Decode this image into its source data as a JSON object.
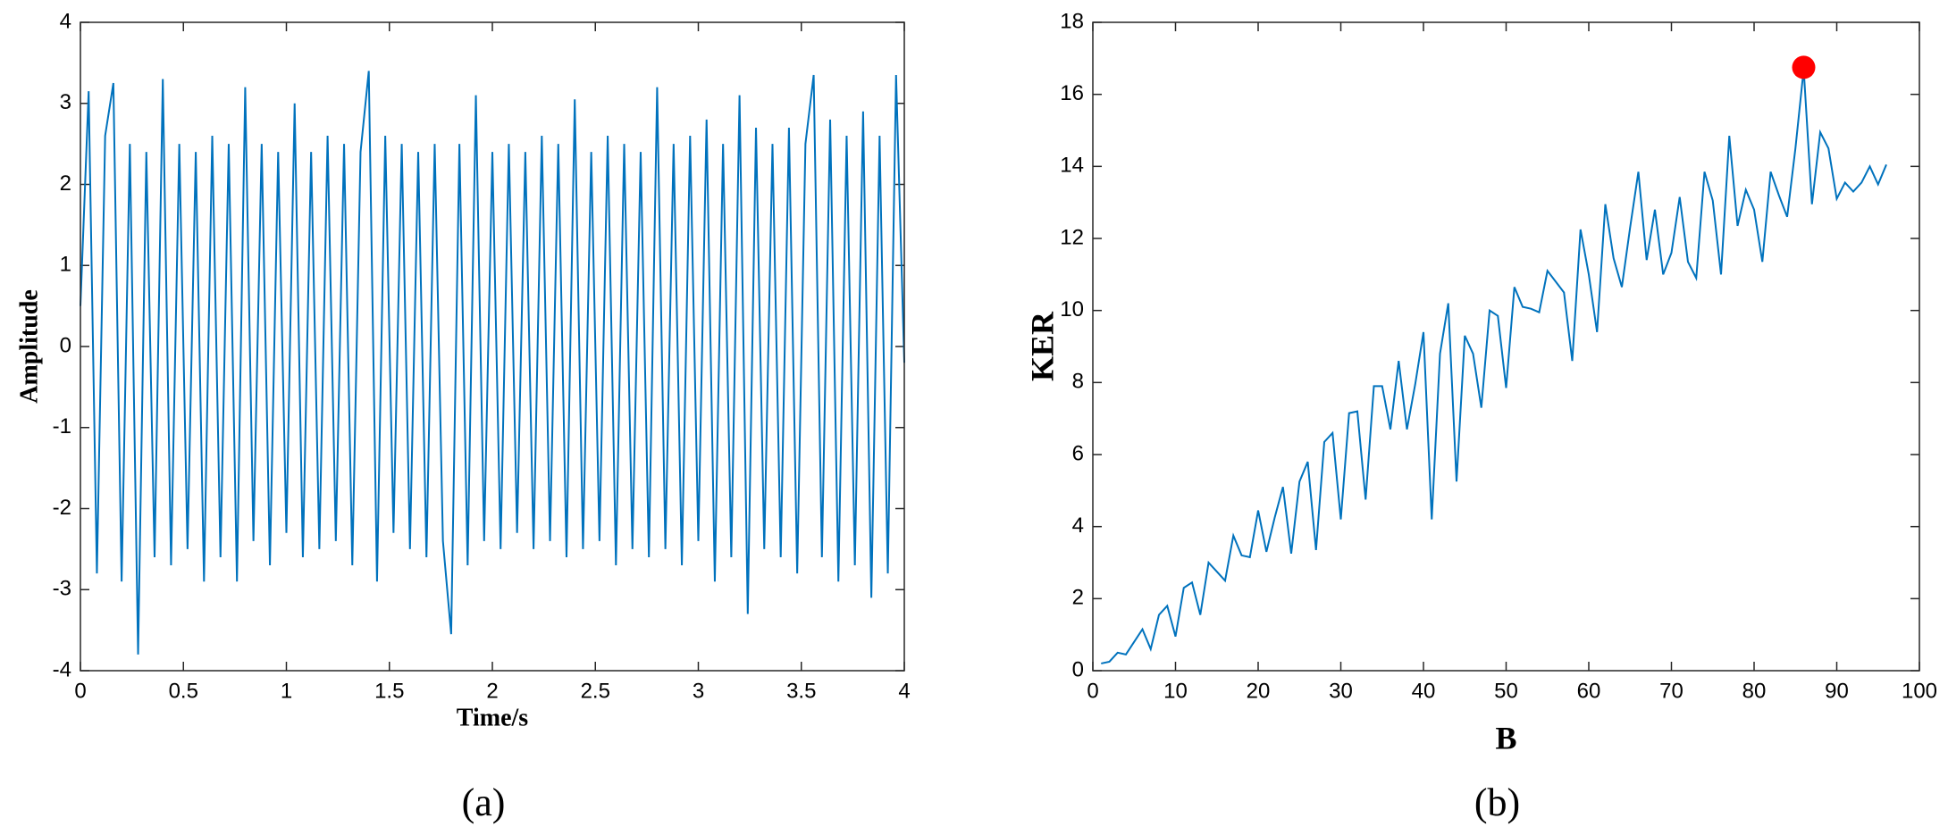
{
  "chart_data": [
    {
      "type": "line",
      "caption": "(a)",
      "xlabel": "Time/s",
      "ylabel": "Amplitude",
      "color": "#0072bd",
      "xlim": [
        0,
        4
      ],
      "xticks": [
        0,
        0.5,
        1,
        1.5,
        2,
        2.5,
        3,
        3.5,
        4
      ],
      "ylim": [
        -4,
        4
      ],
      "yticks": [
        -4,
        -3,
        -2,
        -1,
        0,
        1,
        2,
        3,
        4
      ],
      "x": [
        0,
        0.04,
        0.08,
        0.12,
        0.16,
        0.2,
        0.24,
        0.28,
        0.32,
        0.36,
        0.4,
        0.44,
        0.48,
        0.52,
        0.56,
        0.6,
        0.64,
        0.68,
        0.72,
        0.76,
        0.8,
        0.84,
        0.88,
        0.92,
        0.96,
        1,
        1.04,
        1.08,
        1.12,
        1.16,
        1.2,
        1.24,
        1.28,
        1.32,
        1.36,
        1.4,
        1.44,
        1.48,
        1.52,
        1.56,
        1.6,
        1.64,
        1.68,
        1.72,
        1.76,
        1.8,
        1.84,
        1.88,
        1.92,
        1.96,
        2,
        2.04,
        2.08,
        2.12,
        2.16,
        2.2,
        2.24,
        2.28,
        2.32,
        2.36,
        2.4,
        2.44,
        2.48,
        2.52,
        2.56,
        2.6,
        2.64,
        2.68,
        2.72,
        2.76,
        2.8,
        2.84,
        2.88,
        2.92,
        2.96,
        3,
        3.04,
        3.08,
        3.12,
        3.16,
        3.2,
        3.24,
        3.28,
        3.32,
        3.36,
        3.4,
        3.44,
        3.48,
        3.52,
        3.56,
        3.6,
        3.64,
        3.68,
        3.72,
        3.76,
        3.8,
        3.84,
        3.88,
        3.92,
        3.96,
        4
      ],
      "values": [
        0.5,
        3.15,
        -2.8,
        2.6,
        3.25,
        -2.9,
        2.5,
        -3.8,
        2.4,
        -2.6,
        3.3,
        -2.7,
        2.5,
        -2.5,
        2.4,
        -2.9,
        2.6,
        -2.6,
        2.5,
        -2.9,
        3.2,
        -2.4,
        2.5,
        -2.7,
        2.4,
        -2.3,
        3.0,
        -2.6,
        2.4,
        -2.5,
        2.6,
        -2.4,
        2.5,
        -2.7,
        2.4,
        3.4,
        -2.9,
        2.6,
        -2.3,
        2.5,
        -2.5,
        2.4,
        -2.6,
        2.5,
        -2.4,
        -3.55,
        2.5,
        -2.7,
        3.1,
        -2.4,
        2.4,
        -2.5,
        2.5,
        -2.3,
        2.4,
        -2.5,
        2.6,
        -2.4,
        2.5,
        -2.6,
        3.05,
        -2.5,
        2.4,
        -2.4,
        2.6,
        -2.7,
        2.5,
        -2.5,
        2.4,
        -2.6,
        3.2,
        -2.5,
        2.5,
        -2.7,
        2.6,
        -2.4,
        2.8,
        -2.9,
        2.5,
        -2.6,
        3.1,
        -3.3,
        2.7,
        -2.5,
        2.5,
        -2.6,
        2.7,
        -2.8,
        2.5,
        3.35,
        -2.6,
        2.8,
        -2.9,
        2.6,
        -2.7,
        2.9,
        -3.1,
        2.6,
        -2.8,
        3.35,
        -0.2
      ]
    },
    {
      "type": "line",
      "caption": "(b)",
      "xlabel": "B",
      "ylabel": "KER",
      "color": "#0072bd",
      "xlim": [
        0,
        100
      ],
      "xticks": [
        0,
        10,
        20,
        30,
        40,
        50,
        60,
        70,
        80,
        90,
        100
      ],
      "ylim": [
        0,
        18
      ],
      "yticks": [
        0,
        2,
        4,
        6,
        8,
        10,
        12,
        14,
        16,
        18
      ],
      "x": [
        1,
        2,
        3,
        4,
        5,
        6,
        7,
        8,
        9,
        10,
        11,
        12,
        13,
        14,
        15,
        16,
        17,
        18,
        19,
        20,
        21,
        22,
        23,
        24,
        25,
        26,
        27,
        28,
        29,
        30,
        31,
        32,
        33,
        34,
        35,
        36,
        37,
        38,
        39,
        40,
        41,
        42,
        43,
        44,
        45,
        46,
        47,
        48,
        49,
        50,
        51,
        52,
        53,
        54,
        55,
        56,
        57,
        58,
        59,
        60,
        61,
        62,
        63,
        64,
        65,
        66,
        67,
        68,
        69,
        70,
        71,
        72,
        73,
        74,
        75,
        76,
        77,
        78,
        79,
        80,
        81,
        82,
        83,
        84,
        85,
        86,
        87,
        88,
        89,
        90,
        91,
        92,
        93,
        94,
        95,
        96
      ],
      "values": [
        0.2,
        0.25,
        0.5,
        0.45,
        0.8,
        1.15,
        0.6,
        1.55,
        1.8,
        0.95,
        2.3,
        2.45,
        1.55,
        3.0,
        2.75,
        2.5,
        3.75,
        3.2,
        3.15,
        4.45,
        3.3,
        4.25,
        5.1,
        3.25,
        5.25,
        5.8,
        3.35,
        6.35,
        6.6,
        4.2,
        7.15,
        7.2,
        4.75,
        7.9,
        7.9,
        6.7,
        8.6,
        6.7,
        7.95,
        9.4,
        4.2,
        8.8,
        10.2,
        5.25,
        9.3,
        8.8,
        7.3,
        10.0,
        9.85,
        7.85,
        10.65,
        10.1,
        10.05,
        9.95,
        11.1,
        10.8,
        10.5,
        8.6,
        12.25,
        11.0,
        9.4,
        12.95,
        11.45,
        10.65,
        12.3,
        13.85,
        11.4,
        12.8,
        11.0,
        11.6,
        13.15,
        11.35,
        10.9,
        13.85,
        13.05,
        11.0,
        14.85,
        12.35,
        13.35,
        12.8,
        11.35,
        13.85,
        13.2,
        12.6,
        14.5,
        16.7,
        12.95,
        14.95,
        14.5,
        13.1,
        13.55,
        13.3,
        13.55,
        14.0,
        13.5,
        14.05
      ],
      "marker": {
        "x": 86,
        "y": 16.75,
        "color": "#ff0000"
      }
    }
  ]
}
